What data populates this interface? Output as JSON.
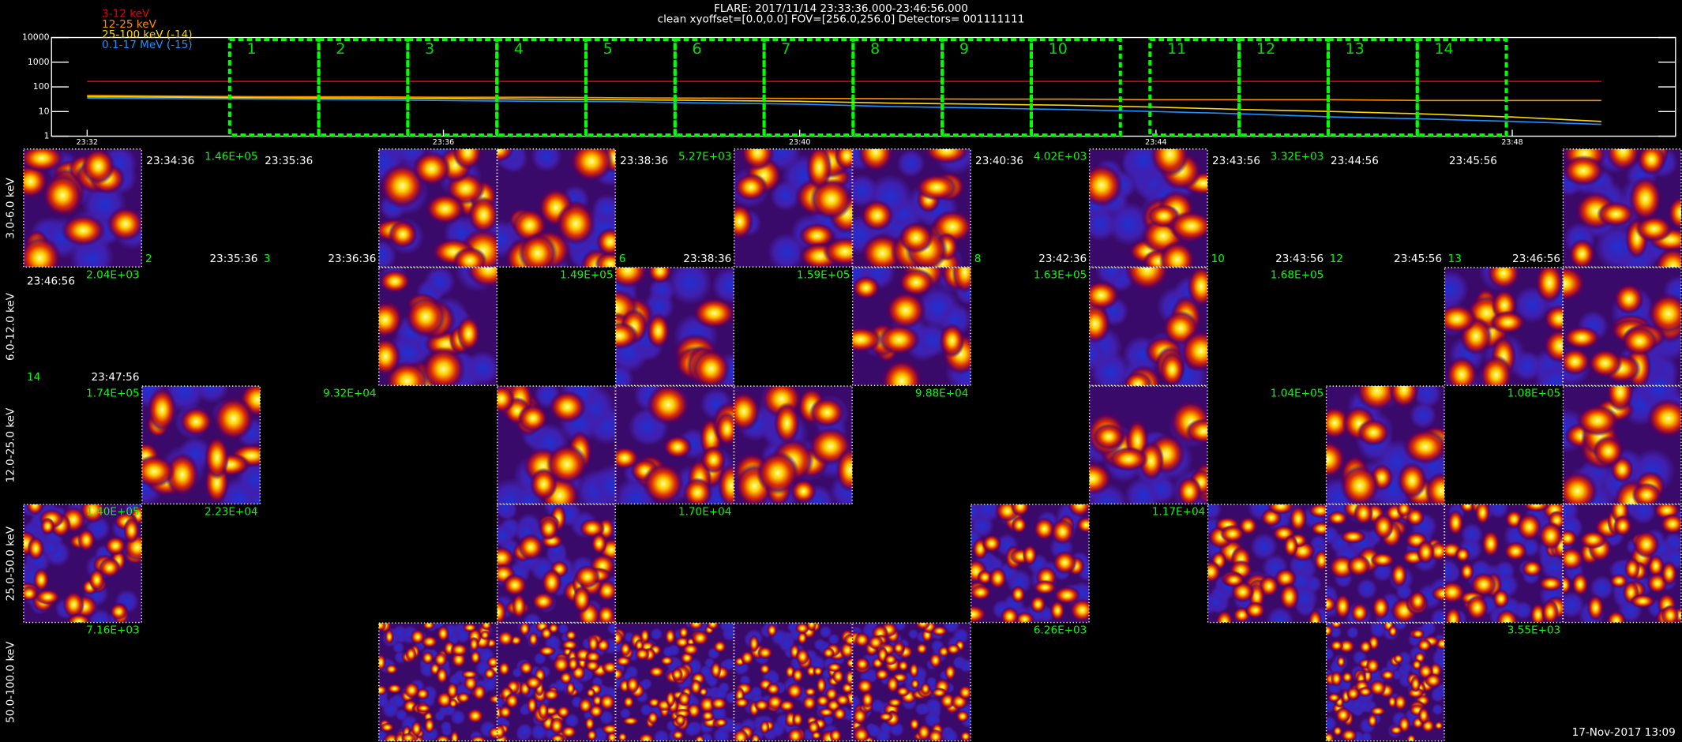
{
  "header": {
    "title": "FLARE: 2017/11/14 23:33:36.000-23:46:56.000",
    "subtitle": "clean    xyoffset=[0.0,0.0]    FOV=[256.0,256.0]    Detectors= 001111111"
  },
  "chart_data": {
    "type": "line",
    "log_y": true,
    "x": [
      "23:32",
      "23:33",
      "23:34",
      "23:35",
      "23:36",
      "23:37",
      "23:38",
      "23:39",
      "23:40",
      "23:41",
      "23:42",
      "23:43",
      "23:44",
      "23:45",
      "23:46",
      "23:47",
      "23:48",
      "23:49"
    ],
    "xlim": [
      "23:31:36",
      "23:49:50"
    ],
    "xticks": [
      "23:32",
      "23:36",
      "23:40",
      "23:44",
      "23:48"
    ],
    "ylim": [
      1,
      10000
    ],
    "yticks": [
      1,
      10,
      100,
      1000,
      10000
    ],
    "series": [
      {
        "name": "3-12 keV",
        "color": "#e00000",
        "values": [
          165,
          165,
          165,
          165,
          165,
          165,
          165,
          165,
          165,
          165,
          165,
          165,
          165,
          165,
          165,
          165,
          165,
          165
        ]
      },
      {
        "name": "12-25 keV",
        "color": "#ff8c00",
        "values": [
          45,
          42,
          40,
          40,
          38,
          38,
          36,
          35,
          34,
          33,
          32,
          32,
          30,
          30,
          30,
          28,
          28,
          28
        ]
      },
      {
        "name": "25-100 keV (-14)",
        "color": "#ffd700",
        "values": [
          40,
          38,
          36,
          35,
          34,
          32,
          30,
          28,
          26,
          22,
          20,
          18,
          15,
          12,
          10,
          8,
          6,
          4
        ]
      },
      {
        "name": "0.1-17 MeV (-15)",
        "color": "#1e90ff",
        "values": [
          35,
          33,
          32,
          30,
          28,
          26,
          25,
          22,
          20,
          16,
          14,
          12,
          10,
          8,
          6,
          5,
          4,
          3
        ]
      }
    ],
    "intervals": [
      {
        "label": "1",
        "start": "23:33:36",
        "end": "23:34:36"
      },
      {
        "label": "2",
        "start": "23:34:36",
        "end": "23:35:36"
      },
      {
        "label": "3",
        "start": "23:35:36",
        "end": "23:36:36"
      },
      {
        "label": "4",
        "start": "23:36:36",
        "end": "23:37:36"
      },
      {
        "label": "5",
        "start": "23:37:36",
        "end": "23:38:36"
      },
      {
        "label": "6",
        "start": "23:38:36",
        "end": "23:39:36"
      },
      {
        "label": "7",
        "start": "23:39:36",
        "end": "23:40:36"
      },
      {
        "label": "8",
        "start": "23:40:36",
        "end": "23:41:36"
      },
      {
        "label": "9",
        "start": "23:41:36",
        "end": "23:42:36"
      },
      {
        "label": "10",
        "start": "23:42:36",
        "end": "23:43:36"
      },
      {
        "label": "11",
        "start": "23:43:56",
        "end": "23:44:56"
      },
      {
        "label": "12",
        "start": "23:44:56",
        "end": "23:45:56"
      },
      {
        "label": "13",
        "start": "23:45:56",
        "end": "23:46:56"
      },
      {
        "label": "14",
        "start": "23:46:56",
        "end": "23:47:56"
      }
    ]
  },
  "panel_rows": [
    {
      "band": "3.0-6.0 keV",
      "cells": [
        {
          "image": true
        },
        {
          "time": "23:34:36",
          "flux": "1.46E+05"
        },
        {
          "time": "23:35:36"
        },
        {
          "image": true
        },
        {
          "image": true
        },
        {
          "time": "23:38:36",
          "flux": "5.27E+03"
        },
        {
          "image": true
        },
        {
          "image": true
        },
        {
          "time": "23:40:36",
          "flux": "4.02E+03"
        },
        {
          "image": true
        },
        {
          "time": "23:43:56",
          "flux": "3.32E+03"
        },
        {
          "time": "23:44:56"
        },
        {
          "time": "23:45:56"
        },
        {
          "image": true
        }
      ]
    },
    {
      "band": "6.0-12.0 keV",
      "cells": [
        {
          "flux": "2.04E+03",
          "time": "23:46:56"
        },
        {
          "number": "2",
          "time": "23:35:36"
        },
        {
          "number": "3",
          "time": "23:36:36"
        },
        {
          "image": true
        },
        {
          "flux": "1.49E+05"
        },
        {
          "image": true,
          "number": "6",
          "time": "23:38:36"
        },
        {
          "flux": "1.59E+05"
        },
        {
          "image": true
        },
        {
          "number": "8",
          "time": "23:42:36",
          "flux": "1.63E+05"
        },
        {
          "image": true
        },
        {
          "number": "10",
          "time": "23:43:56",
          "flux": "1.68E+05"
        },
        {
          "number": "12",
          "time": "23:45:56"
        },
        {
          "image": true,
          "number": "13",
          "time": "23:46:56"
        },
        {
          "image": true
        }
      ]
    },
    {
      "band": "12.0-25.0 keV",
      "cells": [
        {
          "number": "14",
          "time": "23:47:56",
          "flux": "1.74E+05"
        },
        {
          "image": true
        },
        {
          "flux": "9.32E+04"
        },
        {
          "image": false
        },
        {
          "image": true
        },
        {
          "image": true
        },
        {
          "image": true
        },
        {
          "flux": "9.88E+04"
        },
        {
          "image": false
        },
        {
          "image": true
        },
        {
          "flux": "1.04E+05"
        },
        {
          "image": true
        },
        {
          "flux": "1.08E+05"
        },
        {
          "image": true
        }
      ]
    },
    {
      "band": "25.0-50.0 keV",
      "cells": [
        {
          "image": true,
          "flux": "1.40E+05"
        },
        {
          "flux": "2.23E+04"
        },
        {
          "image": false
        },
        {
          "image": false
        },
        {
          "image": true
        },
        {
          "flux": "1.70E+04"
        },
        {
          "image": false
        },
        {
          "image": false
        },
        {
          "image": true
        },
        {
          "flux": "1.17E+04"
        },
        {
          "image": true
        },
        {
          "image": true
        },
        {
          "image": true
        },
        {
          "image": true
        }
      ]
    },
    {
      "band": "50.0-100.0 keV",
      "cells": [
        {
          "flux": "7.16E+03"
        },
        {
          "image": false
        },
        {
          "image": false
        },
        {
          "image": true
        },
        {
          "image": true
        },
        {
          "image": true
        },
        {
          "image": true
        },
        {
          "image": true
        },
        {
          "flux": "6.26E+03"
        },
        {
          "image": false
        },
        {
          "image": false
        },
        {
          "image": true
        },
        {
          "flux": "3.55E+03"
        },
        {
          "image": false
        }
      ]
    }
  ],
  "footer": "17-Nov-2017 13:09"
}
